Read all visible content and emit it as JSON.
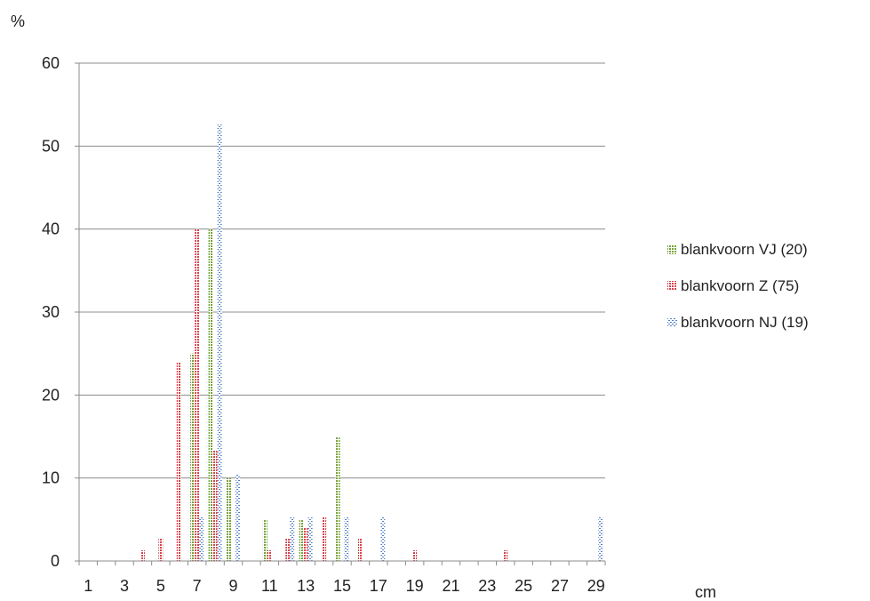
{
  "chart_data": {
    "type": "bar",
    "ylabel": "%",
    "xlabel": "cm",
    "ylim": [
      0,
      60
    ],
    "yticks": [
      0,
      10,
      20,
      30,
      40,
      50,
      60
    ],
    "grid": true,
    "legend_position": "right",
    "categories": [
      1,
      2,
      3,
      4,
      5,
      6,
      7,
      8,
      9,
      10,
      11,
      12,
      13,
      14,
      15,
      16,
      17,
      18,
      19,
      20,
      21,
      22,
      23,
      24,
      25,
      26,
      27,
      28,
      29
    ],
    "xtick_labels": [
      1,
      3,
      5,
      7,
      9,
      11,
      13,
      15,
      17,
      19,
      21,
      23,
      25,
      27,
      29
    ],
    "series": [
      {
        "name": "blankvoorn VJ (20)",
        "color": "#77a33a",
        "values": [
          0,
          0,
          0,
          0,
          0,
          0,
          25,
          40,
          10,
          0,
          5,
          0,
          5,
          0,
          15,
          0,
          0,
          0,
          0,
          0,
          0,
          0,
          0,
          0,
          0,
          0,
          0,
          0,
          0
        ]
      },
      {
        "name": "blankvoorn Z (75)",
        "color": "#d9434c",
        "values": [
          0,
          0,
          0,
          1.3,
          2.7,
          24,
          40,
          13.3,
          0,
          0,
          1.3,
          2.7,
          4,
          5.3,
          0,
          2.7,
          0,
          0,
          1.3,
          0,
          0,
          0,
          0,
          1.3,
          0,
          0,
          0,
          0,
          0
        ]
      },
      {
        "name": "blankvoorn NJ (19)",
        "color": "#4f7fc4",
        "values": [
          0,
          0,
          0,
          0,
          0,
          0,
          5.3,
          52.6,
          10.5,
          0,
          0,
          5.3,
          5.3,
          0,
          5.3,
          0,
          5.3,
          0,
          0,
          0,
          0,
          0,
          0,
          0,
          0,
          0,
          0,
          0,
          5.3
        ]
      }
    ]
  }
}
